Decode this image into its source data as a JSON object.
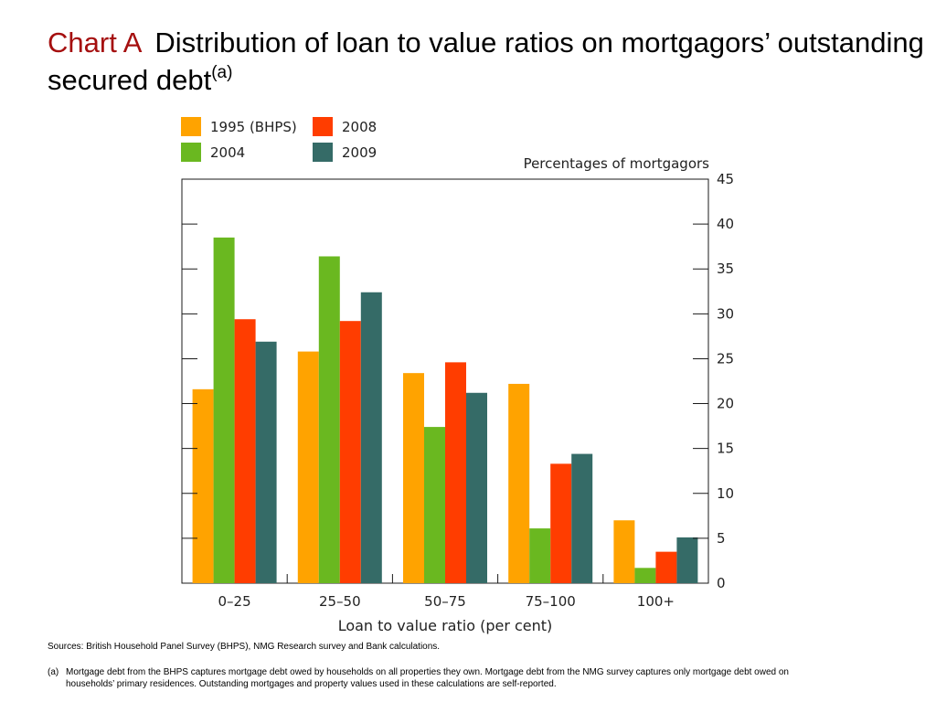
{
  "title": {
    "label": "Chart A",
    "text": "Distribution of loan to value ratios on mortgagors’ outstanding secured debt",
    "superscript": "(a)"
  },
  "chart_data": {
    "type": "bar",
    "categories": [
      "0–25",
      "25–50",
      "50–75",
      "75–100",
      "100+"
    ],
    "series": [
      {
        "name": "1995 (BHPS)",
        "color": "#ffa300",
        "values": [
          21.6,
          25.8,
          23.4,
          22.2,
          7.0
        ]
      },
      {
        "name": "2004",
        "color": "#6ab820",
        "values": [
          38.5,
          36.4,
          17.4,
          6.1,
          1.7
        ]
      },
      {
        "name": "2008",
        "color": "#ff3d00",
        "values": [
          29.4,
          29.2,
          24.6,
          13.3,
          3.5
        ]
      },
      {
        "name": "2009",
        "color": "#356b67",
        "values": [
          26.9,
          32.4,
          21.2,
          14.4,
          5.1
        ]
      }
    ],
    "ylabel": "Percentages of mortgagors",
    "xlabel": "Loan to value ratio (per cent)",
    "ylim": [
      0,
      45
    ],
    "yticks": [
      0,
      5,
      10,
      15,
      20,
      25,
      30,
      35,
      40,
      45
    ],
    "legend_position": "top-left",
    "grid": false
  },
  "sources": "Sources:  British Household Panel Survey (BHPS), NMG Research survey and Bank calculations.",
  "footnote": {
    "marker": "(a)",
    "line1": "Mortgage debt from the BHPS captures mortgage debt owed by households on all properties they own.  Mortgage debt from the NMG survey captures only mortgage debt owed on",
    "line2": "households’ primary residences.  Outstanding mortgages and property values used in these calculations are self-reported."
  }
}
